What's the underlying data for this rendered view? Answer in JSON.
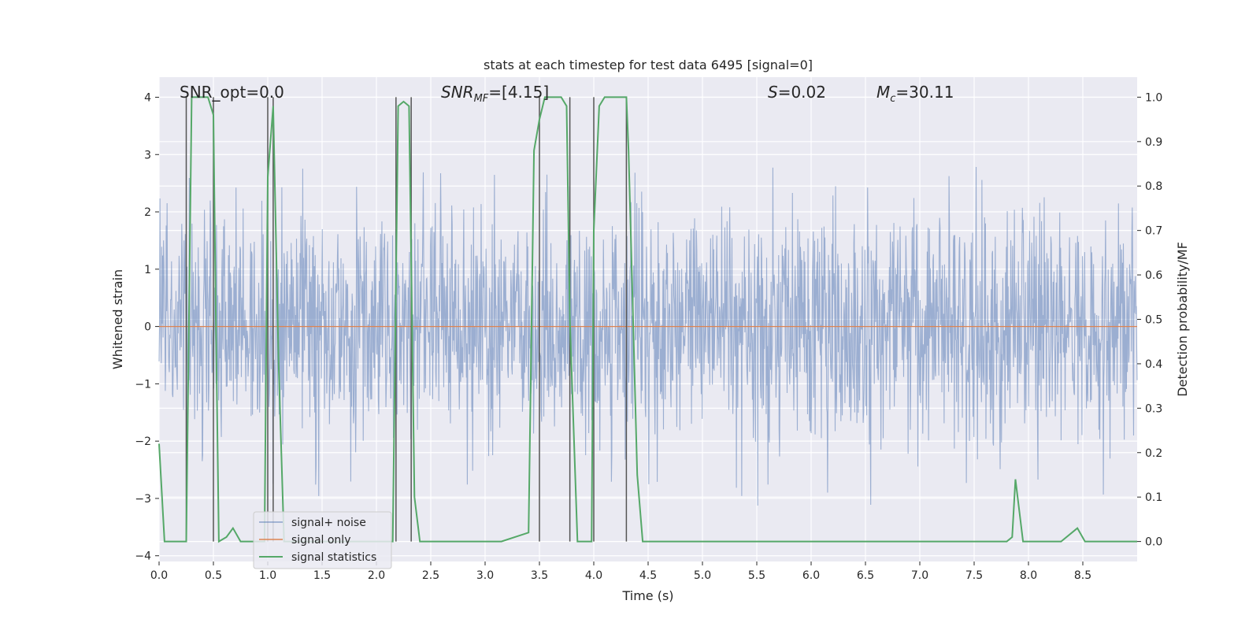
{
  "chart_data": {
    "type": "line",
    "title": "stats at each timestep for test data 6495 [signal=0]",
    "xlabel": "Time (s)",
    "ylabel_left": "Whitened strain",
    "ylabel_right": "Detection probability/MF",
    "xlim": [
      0.0,
      9.0
    ],
    "ylim_left": [
      -4.1,
      4.35
    ],
    "ylim_right": [
      -0.045,
      1.045
    ],
    "xticks": [
      0.0,
      0.5,
      1.0,
      1.5,
      2.0,
      2.5,
      3.0,
      3.5,
      4.0,
      4.5,
      5.0,
      5.5,
      6.0,
      6.5,
      7.0,
      7.5,
      8.0,
      8.5
    ],
    "xtick_labels": [
      "0.0",
      "0.5",
      "1.0",
      "1.5",
      "2.0",
      "2.5",
      "3.0",
      "3.5",
      "4.0",
      "4.5",
      "5.0",
      "5.5",
      "6.0",
      "6.5",
      "7.0",
      "7.5",
      "8.0",
      "8.5"
    ],
    "yticks_left": [
      4,
      3,
      2,
      1,
      0,
      -1,
      -2,
      -3,
      -4
    ],
    "ytick_labels_left": [
      "4",
      "3",
      "2",
      "1",
      "0",
      "−1",
      "−2",
      "−3",
      "−4"
    ],
    "yticks_right": [
      1.0,
      0.9,
      0.8,
      0.7,
      0.6,
      0.5,
      0.4,
      0.3,
      0.2,
      0.1,
      0.0
    ],
    "ytick_labels_right": [
      "1.0",
      "0.9",
      "0.8",
      "0.7",
      "0.6",
      "0.5",
      "0.4",
      "0.3",
      "0.2",
      "0.1",
      "0.0"
    ],
    "annotations": {
      "snr_opt": "SNR_opt=0.0",
      "snr_mf_label": "SNR",
      "snr_mf_sub": "MF",
      "snr_mf_value": "=[4.15]",
      "s_label": "S",
      "s_value": "=0.02",
      "mc_label": "M",
      "mc_sub": "c",
      "mc_value": "=30.11"
    },
    "legend": {
      "position": "lower-left",
      "entries": [
        "signal+ noise",
        "signal only",
        "signal statistics"
      ]
    },
    "series": [
      {
        "name": "signal+ noise",
        "color": "#4c72b0",
        "kind": "noise",
        "sigma": 1.0,
        "seed": 6495,
        "samples": 2200
      },
      {
        "name": "signal only",
        "color": "#dd8452",
        "x": [
          0.0,
          9.0
        ],
        "y": [
          0.0,
          0.0
        ]
      },
      {
        "name": "signal statistics",
        "color": "#55a868",
        "axis": "right",
        "x": [
          0.0,
          0.05,
          0.25,
          0.3,
          0.35,
          0.45,
          0.5,
          0.52,
          0.55,
          0.62,
          0.68,
          0.75,
          0.97,
          1.0,
          1.05,
          1.1,
          1.15,
          2.15,
          2.2,
          2.25,
          2.3,
          2.35,
          2.4,
          2.6,
          2.9,
          3.15,
          3.4,
          3.45,
          3.5,
          3.55,
          3.62,
          3.7,
          3.75,
          3.78,
          3.85,
          3.98,
          4.0,
          4.05,
          4.1,
          4.2,
          4.3,
          4.32,
          4.4,
          4.45,
          7.8,
          7.85,
          7.88,
          7.95,
          8.3,
          8.45,
          8.52,
          8.6,
          9.0
        ],
        "y": [
          0.22,
          0.0,
          0.0,
          1.0,
          1.0,
          1.0,
          0.96,
          0.55,
          0.0,
          0.01,
          0.03,
          0.0,
          0.0,
          0.82,
          0.98,
          0.4,
          0.0,
          0.0,
          0.98,
          0.99,
          0.98,
          0.1,
          0.0,
          0.0,
          0.0,
          0.0,
          0.02,
          0.88,
          0.95,
          1.0,
          1.0,
          1.0,
          0.98,
          0.5,
          0.0,
          0.0,
          0.7,
          0.98,
          1.0,
          1.0,
          1.0,
          0.88,
          0.15,
          0.0,
          0.0,
          0.01,
          0.14,
          0.0,
          0.0,
          0.03,
          0.0,
          0.0,
          0.0
        ]
      }
    ],
    "vertical_markers": [
      0.25,
      0.5,
      1.0,
      1.05,
      2.18,
      2.32,
      3.5,
      3.78,
      4.0,
      4.3
    ],
    "marker_color": "#555555"
  }
}
